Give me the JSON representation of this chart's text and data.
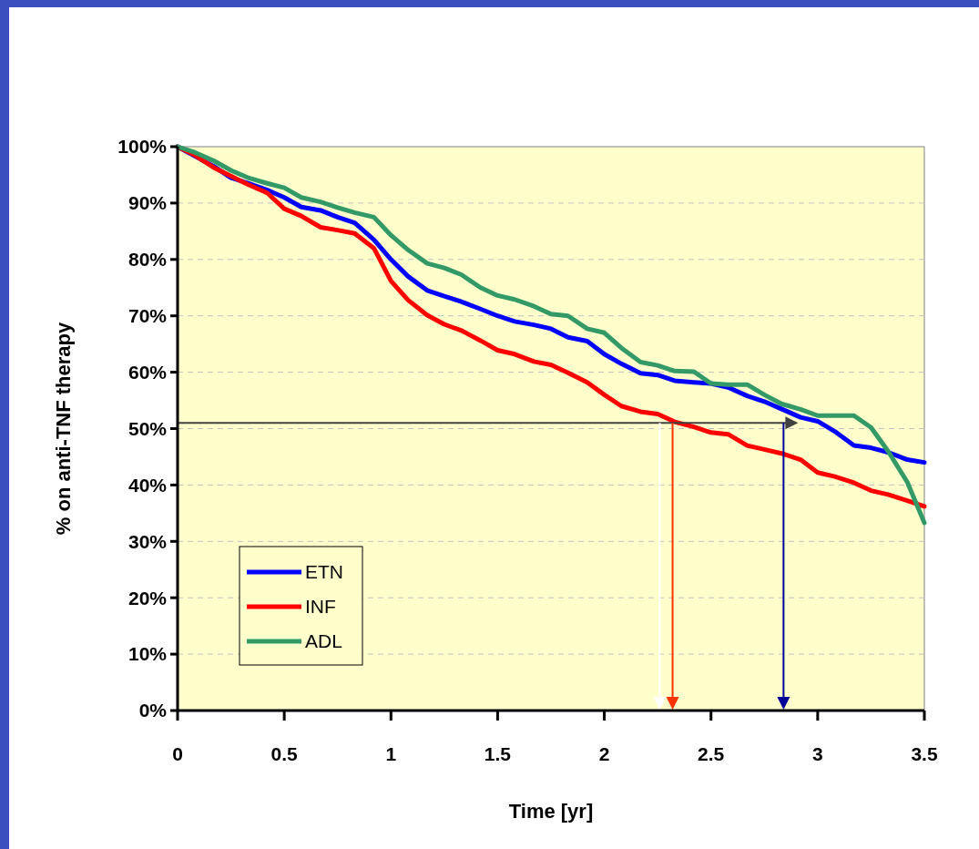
{
  "chart_data": {
    "type": "line",
    "xlabel": "Time [yr]",
    "ylabel": "% on anti-TNF therapy",
    "xlim": [
      0,
      3.5
    ],
    "xticks": [
      0,
      0.5,
      1,
      1.5,
      2,
      2.5,
      3,
      3.5
    ],
    "ylim": [
      0,
      100
    ],
    "yticks": [
      {
        "value": 0,
        "label": "0%"
      },
      {
        "value": 10,
        "label": "10%"
      },
      {
        "value": 20,
        "label": "20%"
      },
      {
        "value": 30,
        "label": "30%"
      },
      {
        "value": 40,
        "label": "40%"
      },
      {
        "value": 50,
        "label": "50%"
      },
      {
        "value": 60,
        "label": "60%"
      },
      {
        "value": 70,
        "label": "70%"
      },
      {
        "value": 80,
        "label": "80%"
      },
      {
        "value": 90,
        "label": "90%"
      },
      {
        "value": 100,
        "label": "100%"
      }
    ],
    "grid": "y",
    "legend": "bottom left",
    "marker": "none",
    "line_style": "solid",
    "x": [
      0,
      0.08,
      0.17,
      0.25,
      0.33,
      0.42,
      0.5,
      0.58,
      0.67,
      0.75,
      0.83,
      0.92,
      1,
      1.08,
      1.17,
      1.25,
      1.33,
      1.42,
      1.5,
      1.58,
      1.67,
      1.75,
      1.83,
      1.92,
      2,
      2.08,
      2.17,
      2.25,
      2.33,
      2.42,
      2.5,
      2.58,
      2.67,
      2.75,
      2.83,
      2.92,
      3,
      3.08,
      3.17,
      3.25,
      3.33,
      3.42,
      3.5
    ],
    "series": [
      {
        "name": "ETN",
        "color": "#0000ff",
        "values": [
          100,
          null,
          96.5,
          94.5,
          93.5,
          92.3,
          91,
          89.3,
          88.7,
          87.5,
          86.5,
          83.5,
          80,
          77,
          74.5,
          73.5,
          72.5,
          71.2,
          70,
          69,
          68.4,
          67.7,
          66.2,
          65.5,
          63.2,
          61.5,
          59.8,
          59.5,
          58.5,
          58.2,
          58,
          57.3,
          55.8,
          54.8,
          53.5,
          52,
          51.3,
          49.5,
          47,
          46.6,
          45.8,
          44.5,
          44
        ]
      },
      {
        "name": "INF",
        "color": "#ff0000",
        "values": [
          100,
          98.5,
          96.3,
          94.8,
          93.3,
          91.8,
          89,
          87.7,
          85.7,
          85.2,
          84.6,
          82,
          76.2,
          72.8,
          70.1,
          68.5,
          67.4,
          65.6,
          63.9,
          63.2,
          61.9,
          61.3,
          59.9,
          58.2,
          56,
          54,
          53,
          52.6,
          51.2,
          50.3,
          49.3,
          49,
          47,
          46.3,
          45.6,
          44.5,
          42.2,
          41.5,
          40.4,
          39,
          38.3,
          37.2,
          36.2
        ]
      },
      {
        "name": "ADL",
        "color": "#339966",
        "values": [
          100,
          99,
          97.5,
          95.8,
          94.5,
          93.5,
          92.7,
          91,
          90.2,
          89.2,
          88.3,
          87.5,
          84.3,
          81.7,
          79.3,
          78.5,
          77.3,
          75,
          73.6,
          72.9,
          71.7,
          70.3,
          70,
          67.7,
          67,
          64.3,
          61.8,
          61.2,
          60.2,
          60.1,
          58,
          57.8,
          57.8,
          56,
          54.4,
          53.4,
          52.3,
          52.3,
          52.3,
          50.2,
          46,
          40.5,
          33.3
        ]
      }
    ],
    "ref_lines": [
      {
        "axis": "y",
        "value": 51,
        "color": "#404040"
      },
      {
        "axis": "x",
        "value": 2.26,
        "color": "#ffffff"
      },
      {
        "axis": "x",
        "value": 2.32,
        "color": "#ff3300"
      },
      {
        "axis": "x",
        "value": 2.84,
        "color": "#000099"
      }
    ]
  }
}
